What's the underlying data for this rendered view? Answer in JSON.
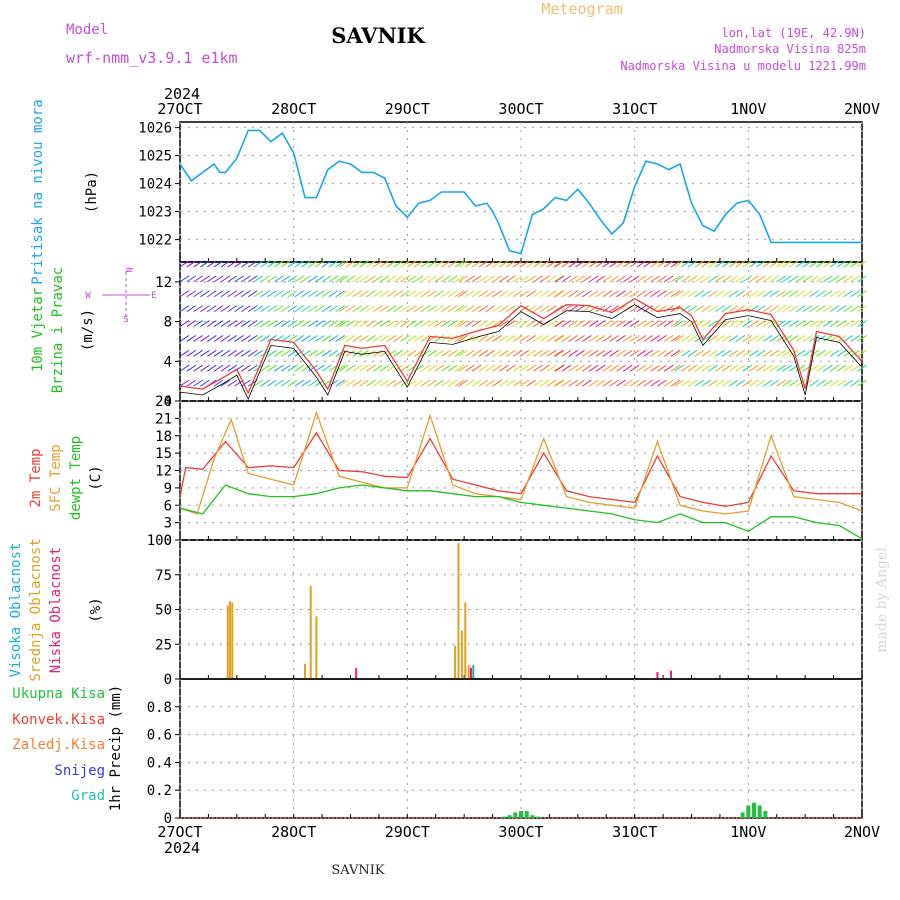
{
  "header": {
    "model_label": "Model",
    "model_name": "wrf-nmm_v3.9.1 e1km",
    "station": "SAVNIK",
    "product": "Meteogram",
    "lonlat": "lon,lat (19E, 42.9N)",
    "altitude": "Nadmorska Visina 825m",
    "model_altitude": "Nadmorska Visina u modelu 1221.99m",
    "footer_station": "SAVNIK",
    "credit": "made by Angel"
  },
  "time_axis": {
    "year": "2024",
    "days": [
      "27OCT",
      "28OCT",
      "29OCT",
      "30OCT",
      "31OCT",
      "1NOV",
      "2NOV"
    ]
  },
  "colors": {
    "pressure": "#1aa7e0",
    "temp2m": "#e8403a",
    "sfc_temp": "#e0a030",
    "dewpt": "#22c020",
    "high_cloud": "#1ab0d0",
    "mid_cloud": "#e0a020",
    "low_cloud": "#e0207a",
    "total_precip": "#22c040",
    "conv_precip": "#e8403a",
    "frozen_precip": "#f08030",
    "snow": "#3a3ad8",
    "hail": "#20c0b0",
    "model": "#c050d0",
    "meteogram": "#f0c070"
  },
  "chart_data": [
    {
      "type": "line",
      "panel": "pressure",
      "ylabel_lines": [
        "Pritisak na nivou mora"
      ],
      "unit": "(hPa)",
      "ylim": [
        1021.2,
        1026.2
      ],
      "yticks": [
        1022,
        1023,
        1024,
        1025,
        1026
      ],
      "series": [
        {
          "x": [
            0,
            0.1,
            0.2,
            0.3,
            0.35,
            0.4,
            0.5,
            0.6,
            0.7,
            0.8,
            0.9,
            1.0,
            1.1,
            1.2,
            1.3,
            1.4,
            1.5,
            1.6,
            1.7,
            1.8,
            1.9,
            2.0,
            2.1,
            2.2,
            2.3,
            2.4,
            2.5,
            2.6,
            2.7,
            2.75,
            2.8,
            2.9,
            3.0,
            3.1,
            3.2,
            3.3,
            3.4,
            3.5,
            3.6,
            3.7,
            3.8,
            3.9,
            4.0,
            4.1,
            4.2,
            4.3,
            4.4,
            4.5,
            4.6,
            4.7,
            4.8,
            4.9,
            5.0,
            5.1,
            5.2,
            5.3,
            5.4,
            5.5,
            5.6,
            5.7,
            5.8,
            5.9,
            6.0
          ],
          "y": [
            1024.7,
            1024.1,
            1024.4,
            1024.7,
            1024.4,
            1024.4,
            1024.9,
            1025.9,
            1025.9,
            1025.5,
            1025.8,
            1025.1,
            1023.5,
            1023.5,
            1024.5,
            1024.8,
            1024.7,
            1024.4,
            1024.4,
            1024.2,
            1023.2,
            1022.8,
            1023.3,
            1023.4,
            1023.7,
            1023.7,
            1023.7,
            1023.2,
            1023.3,
            1023.0,
            1022.6,
            1021.6,
            1021.5,
            1022.9,
            1023.1,
            1023.5,
            1023.4,
            1023.8,
            1023.3,
            1022.7,
            1022.2,
            1022.6,
            1023.9,
            1024.8,
            1024.7,
            1024.5,
            1024.7,
            1023.3,
            1022.5,
            1022.3,
            1022.9,
            1023.3,
            1023.4,
            1022.9,
            1021.9,
            1021.9,
            1021.9,
            1021.9,
            1021.9,
            1021.9,
            1021.9,
            1021.9,
            1021.9
          ]
        }
      ]
    },
    {
      "type": "line",
      "panel": "wind",
      "ylabel_lines": [
        "10m Vjetar",
        "Brzina i Pravac"
      ],
      "unit": "(m/s)",
      "ylim": [
        0,
        14
      ],
      "yticks": [
        0,
        4,
        8,
        12
      ],
      "compass": [
        "N",
        "W",
        "E",
        "S"
      ],
      "series": [
        {
          "name": "speed",
          "x": [
            0,
            0.2,
            0.4,
            0.5,
            0.6,
            0.8,
            1.0,
            1.2,
            1.3,
            1.45,
            1.6,
            1.8,
            2.0,
            2.2,
            2.4,
            2.6,
            2.8,
            3.0,
            3.2,
            3.4,
            3.6,
            3.8,
            4.0,
            4.2,
            4.4,
            4.5,
            4.6,
            4.8,
            5.0,
            5.2,
            5.4,
            5.5,
            5.6,
            5.8,
            6.0
          ],
          "y": [
            1.5,
            1.2,
            2.5,
            3.2,
            0.8,
            6.2,
            5.9,
            3.0,
            1.2,
            5.6,
            5.3,
            5.6,
            2.0,
            6.5,
            6.3,
            7.0,
            7.6,
            9.6,
            8.3,
            9.7,
            9.6,
            8.9,
            10.3,
            9.0,
            9.4,
            8.6,
            6.2,
            8.8,
            9.2,
            8.7,
            5.1,
            1.2,
            7.0,
            6.5,
            4.0
          ]
        }
      ]
    },
    {
      "type": "line",
      "panel": "temperature",
      "ylabel_lines": [
        "2m Temp",
        "SFC Temp",
        "dewpt Temp"
      ],
      "unit": "(C)",
      "ylim": [
        0,
        24
      ],
      "yticks": [
        0,
        3,
        6,
        9,
        12,
        15,
        18,
        21,
        24
      ],
      "series": [
        {
          "name": "2m Temp",
          "x": [
            0,
            0.05,
            0.2,
            0.4,
            0.6,
            0.8,
            1.0,
            1.2,
            1.4,
            1.6,
            1.8,
            2.0,
            2.2,
            2.4,
            2.6,
            2.8,
            3.0,
            3.2,
            3.4,
            3.6,
            3.8,
            4.0,
            4.2,
            4.4,
            4.6,
            4.8,
            5.0,
            5.2,
            5.4,
            5.6,
            5.8,
            6.0
          ],
          "y": [
            7.5,
            12.5,
            12.2,
            17.0,
            12.5,
            12.8,
            12.5,
            18.5,
            12.0,
            11.8,
            11.0,
            10.8,
            17.5,
            10.5,
            9.5,
            8.5,
            8.0,
            15.0,
            8.5,
            7.5,
            7.0,
            6.5,
            14.5,
            7.5,
            6.5,
            5.8,
            6.5,
            14.5,
            8.5,
            8.0,
            8.0,
            8.0
          ]
        },
        {
          "name": "SFC Temp",
          "x": [
            0,
            0.15,
            0.3,
            0.45,
            0.6,
            0.8,
            1.0,
            1.2,
            1.4,
            1.6,
            1.8,
            2.0,
            2.2,
            2.4,
            2.6,
            2.8,
            3.0,
            3.2,
            3.4,
            3.6,
            3.8,
            4.0,
            4.2,
            4.4,
            4.6,
            4.8,
            5.0,
            5.2,
            5.4,
            5.6,
            5.8,
            6.0
          ],
          "y": [
            5.5,
            4.5,
            14.0,
            20.8,
            11.5,
            10.5,
            9.5,
            22.0,
            11.0,
            10.0,
            9.0,
            9.0,
            21.5,
            9.5,
            8.0,
            7.5,
            7.0,
            17.5,
            7.5,
            6.5,
            6.0,
            5.5,
            17.0,
            6.0,
            5.0,
            4.5,
            5.0,
            18.0,
            7.5,
            7.0,
            6.5,
            5.0
          ]
        },
        {
          "name": "dewpt Temp",
          "x": [
            0,
            0.2,
            0.4,
            0.6,
            0.8,
            1.0,
            1.2,
            1.4,
            1.6,
            1.8,
            2.0,
            2.2,
            2.4,
            2.6,
            2.8,
            3.0,
            3.2,
            3.4,
            3.6,
            3.8,
            4.0,
            4.2,
            4.4,
            4.6,
            4.8,
            5.0,
            5.2,
            5.4,
            5.6,
            5.8,
            6.0
          ],
          "y": [
            5.5,
            4.5,
            9.5,
            8.0,
            7.5,
            7.5,
            8.0,
            9.0,
            9.5,
            9.0,
            8.5,
            8.5,
            8.0,
            7.5,
            7.5,
            6.5,
            6.0,
            5.5,
            5.0,
            4.5,
            3.5,
            3.0,
            4.5,
            3.0,
            3.0,
            1.5,
            4.0,
            4.0,
            3.0,
            2.5,
            0.2
          ]
        }
      ]
    },
    {
      "type": "bar",
      "panel": "clouds",
      "ylabel_lines": [
        "Visoka Oblacnost",
        "Srednja Oblacnost",
        "Niska Oblacnost"
      ],
      "unit": "(%)",
      "ylim": [
        0,
        100
      ],
      "yticks": [
        0,
        25,
        50,
        75,
        100
      ],
      "series": [
        {
          "name": "Srednja Oblacnost",
          "x": [
            0.42,
            0.44,
            0.46,
            1.1,
            1.15,
            1.2,
            2.42,
            2.45,
            2.48,
            2.51,
            2.54
          ],
          "values": [
            53,
            56,
            55,
            11,
            67,
            45,
            24,
            98,
            35,
            55,
            10
          ]
        },
        {
          "name": "Niska Oblacnost",
          "x": [
            1.55,
            2.56,
            4.2,
            4.32
          ],
          "values": [
            8,
            8,
            5,
            6
          ]
        },
        {
          "name": "Visoka Oblacnost",
          "x": [
            2.58
          ],
          "values": [
            10
          ]
        }
      ]
    },
    {
      "type": "bar",
      "panel": "precip",
      "ylabel_lines": [
        "Ukupna Kisa",
        "Konvek.Kisa",
        "Zaledj.Kisa",
        "Snijeg",
        "Grad"
      ],
      "unit": "1hr Precip (mm)",
      "ylim": [
        0,
        1.0
      ],
      "yticks": [
        0,
        0.2,
        0.4,
        0.6,
        0.8
      ],
      "series": [
        {
          "name": "Ukupna Kisa",
          "x": [
            2.85,
            2.9,
            2.95,
            3.0,
            3.05,
            3.1,
            3.15,
            4.95,
            5.0,
            5.05,
            5.1,
            5.15
          ],
          "values": [
            0.01,
            0.02,
            0.04,
            0.05,
            0.05,
            0.02,
            0.01,
            0.04,
            0.09,
            0.11,
            0.09,
            0.05
          ]
        }
      ]
    }
  ]
}
